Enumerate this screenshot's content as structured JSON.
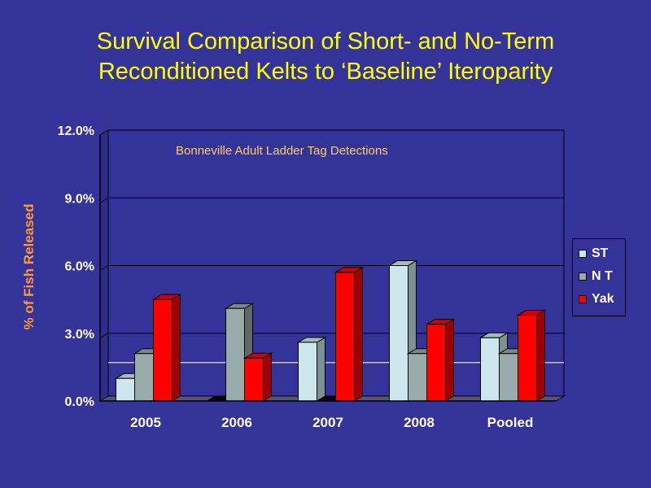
{
  "title": {
    "line1": "Survival Comparison of Short- and No-Term",
    "line2": "Reconditioned Kelts to ‘Baseline’ Iteroparity"
  },
  "colors": {
    "background": "#333399",
    "title": "#ffff00",
    "ylabel": "#ff9933",
    "annotation": "#ffcc66",
    "baseline": "#ffff66"
  },
  "chart_data": {
    "type": "bar",
    "title": "Survival Comparison of Short- and No-Term Reconditioned Kelts to ‘Baseline’ Iteroparity",
    "annotation": "Bonneville Adult Ladder Tag Detections",
    "xlabel": "",
    "ylabel": "% of Fish Released",
    "ylim": [
      0,
      12
    ],
    "yticks": [
      "0.0%",
      "3.0%",
      "6.0%",
      "9.0%",
      "12.0%"
    ],
    "ytick_values": [
      0,
      3,
      6,
      9,
      12
    ],
    "categories": [
      "2005",
      "2006",
      "2007",
      "2008",
      "Pooled"
    ],
    "series": [
      {
        "name": "ST",
        "color": "#cce8ee",
        "values": [
          1.0,
          0,
          2.6,
          6.0,
          2.8
        ]
      },
      {
        "name": "N T",
        "color": "#99aaaa",
        "values": [
          2.1,
          4.1,
          0,
          2.1,
          2.1
        ]
      },
      {
        "name": "Yak",
        "color": "#ff0000",
        "values": [
          4.5,
          1.9,
          5.7,
          3.4,
          3.8
        ]
      }
    ],
    "baseline": 1.7,
    "grid": true,
    "legend": "right"
  }
}
